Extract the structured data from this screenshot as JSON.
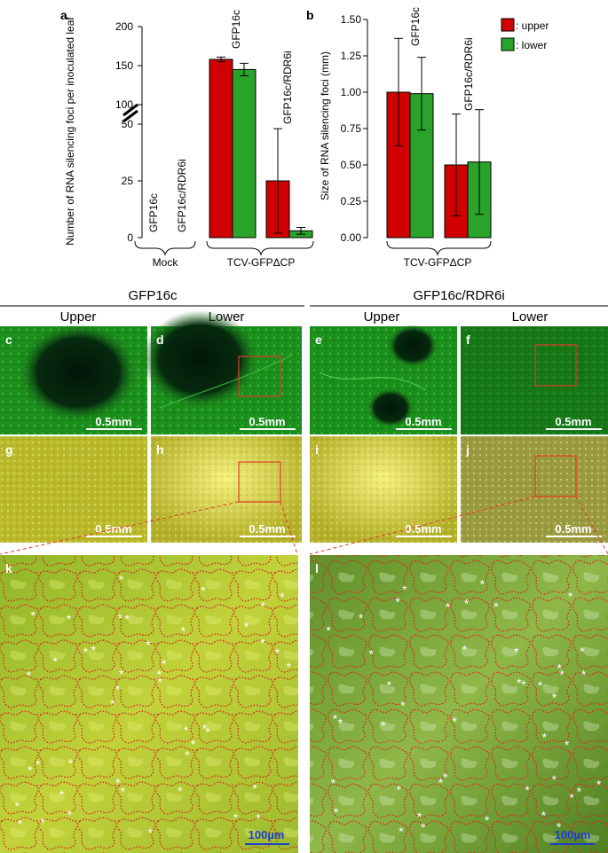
{
  "chart_data": [
    {
      "panel": "a",
      "type": "bar",
      "ylabel": "Number of RNA silencing foci per inoculated leaf",
      "yticks": [
        "0",
        "25",
        "50",
        "100",
        "150",
        "200"
      ],
      "ylim": [
        0,
        200
      ],
      "axis_break": true,
      "groups": [
        "Mock",
        "TCV-GFPΔCP"
      ],
      "categories": [
        "GFP16c",
        "GFP16c/RDR6i",
        "GFP16c",
        "GFP16c/RDR6i"
      ],
      "category_group": [
        0,
        0,
        1,
        1
      ],
      "series": [
        {
          "name": ": upper",
          "color": "#d10000",
          "values": [
            0,
            0,
            158,
            25
          ],
          "error": [
            0,
            0,
            3,
            23
          ]
        },
        {
          "name": ": lower",
          "color": "#2aa32a",
          "values": [
            0,
            0,
            145,
            3
          ],
          "error": [
            0,
            0,
            8,
            1.5
          ]
        }
      ]
    },
    {
      "panel": "b",
      "type": "bar",
      "ylabel": "Size of RNA silencing foci (mm)",
      "yticks": [
        "0.00",
        "0.25",
        "0.50",
        "0.75",
        "1.00",
        "1.25",
        "1.50"
      ],
      "ylim": [
        0,
        1.5
      ],
      "groups": [
        "TCV-GFPΔCP"
      ],
      "categories": [
        "GFP16c",
        "GFP16c/RDR6i"
      ],
      "series": [
        {
          "name": ": upper",
          "color": "#d10000",
          "values": [
            1.0,
            0.5
          ],
          "error": [
            0.37,
            0.35
          ]
        },
        {
          "name": ": lower",
          "color": "#2aa32a",
          "values": [
            0.99,
            0.52
          ],
          "error": [
            0.25,
            0.36
          ]
        }
      ]
    }
  ],
  "panel_labels": {
    "a": "a",
    "b": "b",
    "c": "c",
    "d": "d",
    "e": "e",
    "f": "f",
    "g": "g",
    "h": "h",
    "i": "i",
    "j": "j",
    "k": "k",
    "l": "l"
  },
  "legend": {
    "upper": ": upper",
    "upper_color": "#d10000",
    "lower": ": lower",
    "lower_color": "#2aa32a"
  },
  "micrographs": {
    "left_title": "GFP16c",
    "right_title": "GFP16c/RDR6i",
    "col_upper": "Upper",
    "col_lower": "Lower",
    "scale_small": "0.5mm",
    "scale_large": "100µm",
    "fluorescence_color": "#1b8f1b",
    "brightfield_color": "#b9b92a",
    "epidermis_color": "#7faa22",
    "outline_color": "#d42a1a",
    "box_color": "#e03a2a",
    "scale_large_color": "#1a3fd0"
  }
}
